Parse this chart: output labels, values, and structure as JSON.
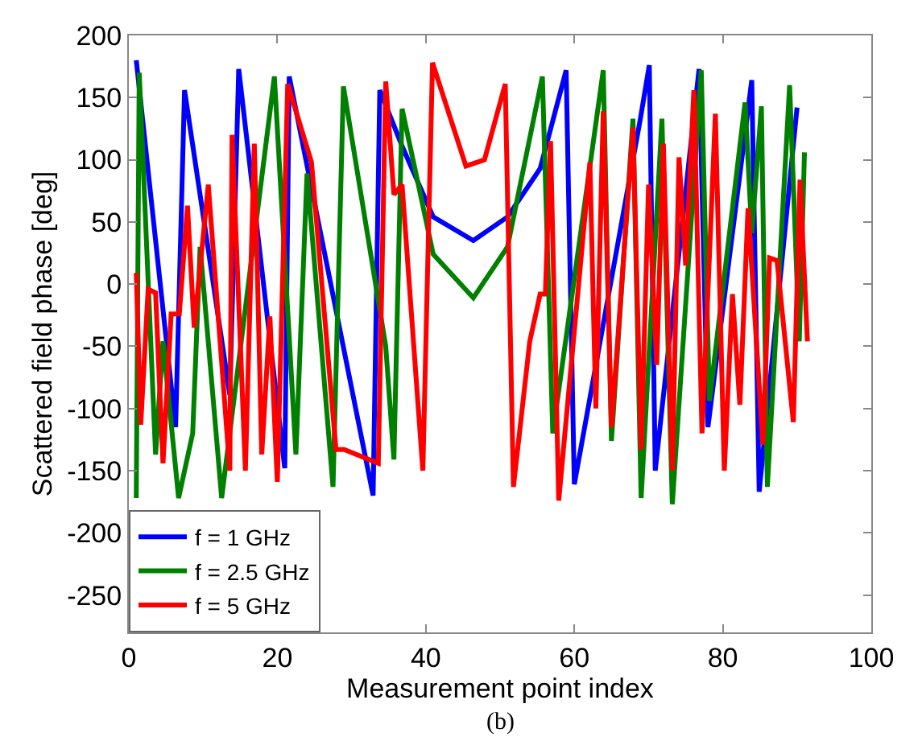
{
  "chart_data": {
    "type": "line",
    "xlabel": "Measurement point index",
    "ylabel": "Scattered field phase [deg]",
    "xlim": [
      0,
      100
    ],
    "xticks": [
      0,
      20,
      40,
      60,
      80,
      100
    ],
    "ylim": [
      -280,
      200
    ],
    "yticks": [
      -250,
      -200,
      -150,
      -100,
      -50,
      0,
      50,
      100,
      150,
      200
    ],
    "legend": "bottom left",
    "line_style": "solid",
    "marker": "none",
    "annotations": [
      "(b)"
    ],
    "series": [
      {
        "name": "f = 1 GHz",
        "color": "#0000ff",
        "x": [
          1,
          6.3,
          7.5,
          13.6,
          14.8,
          21,
          21.6,
          32.9,
          33.8,
          36.8,
          41,
          46.4,
          51,
          55.4,
          58.9,
          60,
          68.9,
          70.1,
          70.9,
          76.8,
          78,
          83.9,
          84.9,
          90
        ],
        "values": [
          180,
          -115,
          156,
          -89,
          173,
          -148,
          167,
          -170,
          156,
          111,
          54,
          35,
          54,
          93,
          172,
          -161,
          133,
          176,
          -150,
          173,
          -115,
          164,
          -167,
          142
        ]
      },
      {
        "name": "f = 2.5 GHz",
        "color": "#008000",
        "x": [
          1,
          1.4,
          3.6,
          4.6,
          6.7,
          8.6,
          9.6,
          12.5,
          19.6,
          22.5,
          24,
          27.5,
          28.9,
          34.6,
          35.7,
          36.8,
          41,
          46.4,
          51,
          55.7,
          57.1,
          63.9,
          65,
          67.9,
          69,
          71.8,
          73.2,
          77.1,
          78.2,
          83,
          83.9,
          85.2,
          86,
          89,
          90.3,
          91
        ],
        "values": [
          -172,
          170,
          -137,
          -46,
          -172,
          -120,
          30,
          -172,
          167,
          -137,
          89,
          -163,
          159,
          -50,
          -141,
          141,
          24,
          -11,
          30,
          167,
          -120,
          172,
          -126,
          133,
          -172,
          133,
          -177,
          172,
          -94,
          146,
          41,
          143,
          -163,
          160,
          -46,
          106
        ]
      },
      {
        "name": "f = 5 GHz",
        "color": "#ff0000",
        "x": [
          1,
          1.6,
          2.6,
          3.6,
          4.6,
          5.7,
          6.8,
          7.9,
          8.8,
          10.7,
          13.6,
          13.9,
          15.7,
          16.9,
          17.9,
          19,
          20,
          21.4,
          24.6,
          27.9,
          29,
          33.6,
          34.6,
          35.7,
          36.8,
          39.6,
          40.9,
          45.4,
          47.9,
          50.7,
          51.8,
          54,
          55.4,
          56.1,
          56.8,
          57.9,
          62.1,
          62.9,
          63.9,
          65,
          67.9,
          69,
          70,
          71.1,
          72,
          73.2,
          74.1,
          75,
          76.1,
          77.2,
          79,
          80.2,
          81.3,
          82.3,
          83.4,
          85.4,
          86.3,
          87.3,
          89.5,
          90.4,
          91.4
        ],
        "values": [
          9,
          -113,
          -4,
          -7,
          -144,
          -24,
          -24,
          63,
          -35,
          80,
          -150,
          120,
          -150,
          113,
          -137,
          -26,
          -159,
          161,
          98,
          -133,
          -133,
          -144,
          163,
          72,
          80,
          -150,
          178,
          95,
          100,
          161,
          -163,
          -46,
          -8,
          -8,
          115,
          -174,
          98,
          -100,
          139,
          -115,
          126,
          -133,
          80,
          -65,
          113,
          -150,
          102,
          15,
          156,
          -120,
          137,
          -150,
          -8,
          -97,
          61,
          -129,
          21,
          19,
          -111,
          84,
          -46
        ]
      }
    ]
  }
}
